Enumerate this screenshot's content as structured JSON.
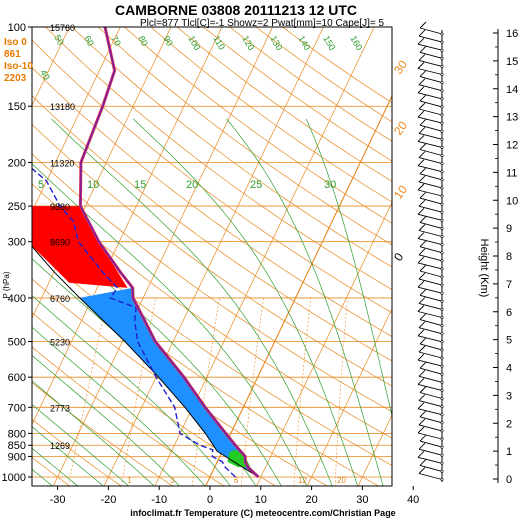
{
  "colors": {
    "isotherm": "#e8881e",
    "dry_adiabat": "#e8881e",
    "moist_adiabat": "#2e9e2e",
    "mixing_ratio": "#e8881e",
    "temperature": "#7a1fa0",
    "temperature_edge": "#e03050",
    "dewpoint": "#2020d0",
    "parcel": "#000000",
    "cape_fill": "#ff0000",
    "cin_fill": "#1e90ff",
    "green_fill": "#22cc22",
    "header_orange": "#e87a00",
    "wind_black": "#000000"
  },
  "chart_data": {
    "type": "line",
    "title": "CAMBORNE 03808 20111213 12 UTC",
    "subtitle": "Plcl=877 Tlcl[C]=-1 Showz=2 Pwat[mm]=10 Cape[J]= 5",
    "xlabel": "infoclimat.fr Temperature (C) meteocentre.com/Christian Page",
    "ylabel": "P (hPa)",
    "right_axis_label": "Height (Km)",
    "x_ticks": [
      "-30",
      "-20",
      "-10",
      "0",
      "10",
      "20",
      "30",
      "40"
    ],
    "y_ticks": [
      "100",
      "150",
      "200",
      "250",
      "300",
      "400",
      "500",
      "600",
      "700",
      "800",
      "850",
      "900",
      "1000"
    ],
    "height_ticks": [
      "0",
      "1",
      "2",
      "3",
      "4",
      "5",
      "6",
      "7",
      "8",
      "9",
      "10",
      "11",
      "12",
      "13",
      "14",
      "15",
      "16"
    ],
    "freezing_levels": [
      "Iso 0",
      "861",
      "Iso-10",
      "2203"
    ],
    "level_heights": [
      {
        "p": 100,
        "z": "15760"
      },
      {
        "p": 150,
        "z": "13180"
      },
      {
        "p": 200,
        "z": "11320"
      },
      {
        "p": 250,
        "z": "9880"
      },
      {
        "p": 300,
        "z": "8690"
      },
      {
        "p": 400,
        "z": "6760"
      },
      {
        "p": 500,
        "z": "5230"
      },
      {
        "p": 700,
        "z": "2773"
      },
      {
        "p": 850,
        "z": "1269"
      }
    ],
    "isotherm_labels": [
      "0",
      "10",
      "20",
      "30"
    ],
    "theta_e_labels": [
      "40",
      "50",
      "60",
      "70",
      "80",
      "90",
      "100",
      "110",
      "120",
      "130",
      "140",
      "150",
      "160"
    ],
    "mixing_labels": [
      "1",
      "3",
      "6",
      "12",
      "20"
    ],
    "moist_labels": [
      "5",
      "10",
      "15",
      "20",
      "25",
      "30"
    ],
    "temperature": [
      {
        "p": 1000,
        "t": 9.5
      },
      {
        "p": 950,
        "t": 6.5
      },
      {
        "p": 925,
        "t": 5.5
      },
      {
        "p": 900,
        "t": 5.0
      },
      {
        "p": 850,
        "t": 2.0
      },
      {
        "p": 800,
        "t": -1.0
      },
      {
        "p": 700,
        "t": -7.5
      },
      {
        "p": 600,
        "t": -14.5
      },
      {
        "p": 500,
        "t": -23.5
      },
      {
        "p": 450,
        "t": -27.5
      },
      {
        "p": 400,
        "t": -32.0
      },
      {
        "p": 380,
        "t": -33.0
      },
      {
        "p": 350,
        "t": -37.0
      },
      {
        "p": 300,
        "t": -44.0
      },
      {
        "p": 250,
        "t": -51.0
      },
      {
        "p": 200,
        "t": -55.0
      },
      {
        "p": 150,
        "t": -56.0
      },
      {
        "p": 125,
        "t": -57.0
      },
      {
        "p": 100,
        "t": -63.0
      }
    ],
    "dewpoint": [
      {
        "p": 1000,
        "t": 5.0
      },
      {
        "p": 950,
        "t": 2.0
      },
      {
        "p": 925,
        "t": 1.0
      },
      {
        "p": 900,
        "t": -1.5
      },
      {
        "p": 870,
        "t": -2.0
      },
      {
        "p": 850,
        "t": -5.0
      },
      {
        "p": 800,
        "t": -10.0
      },
      {
        "p": 700,
        "t": -13.5
      },
      {
        "p": 600,
        "t": -20.0
      },
      {
        "p": 500,
        "t": -27.0
      },
      {
        "p": 450,
        "t": -29.5
      },
      {
        "p": 420,
        "t": -30.5
      },
      {
        "p": 400,
        "t": -36.5
      },
      {
        "p": 380,
        "t": -36.0
      },
      {
        "p": 350,
        "t": -40.5
      },
      {
        "p": 300,
        "t": -48.0
      },
      {
        "p": 270,
        "t": -51.0
      },
      {
        "p": 250,
        "t": -55.0
      },
      {
        "p": 220,
        "t": -60.0
      },
      {
        "p": 200,
        "t": -66.0
      },
      {
        "p": 175,
        "t": -68.0
      },
      {
        "p": 160,
        "t": -70.0
      },
      {
        "p": 150,
        "t": -74.0
      },
      {
        "p": 130,
        "t": -80.0
      },
      {
        "p": 125,
        "t": -78.0
      },
      {
        "p": 110,
        "t": -79.0
      },
      {
        "p": 100,
        "t": -80.0
      }
    ],
    "parcel": [
      {
        "p": 1000,
        "t": 9.5
      },
      {
        "p": 877,
        "t": -1.0
      },
      {
        "p": 800,
        "t": -5.0
      },
      {
        "p": 700,
        "t": -11.5
      },
      {
        "p": 600,
        "t": -19.5
      },
      {
        "p": 500,
        "t": -29.5
      },
      {
        "p": 400,
        "t": -42.5
      },
      {
        "p": 350,
        "t": -50.0
      },
      {
        "p": 300,
        "t": -58.0
      },
      {
        "p": 250,
        "t": -68.0
      }
    ],
    "ylim": [
      1030,
      100
    ],
    "xlim": [
      -35,
      40
    ]
  }
}
